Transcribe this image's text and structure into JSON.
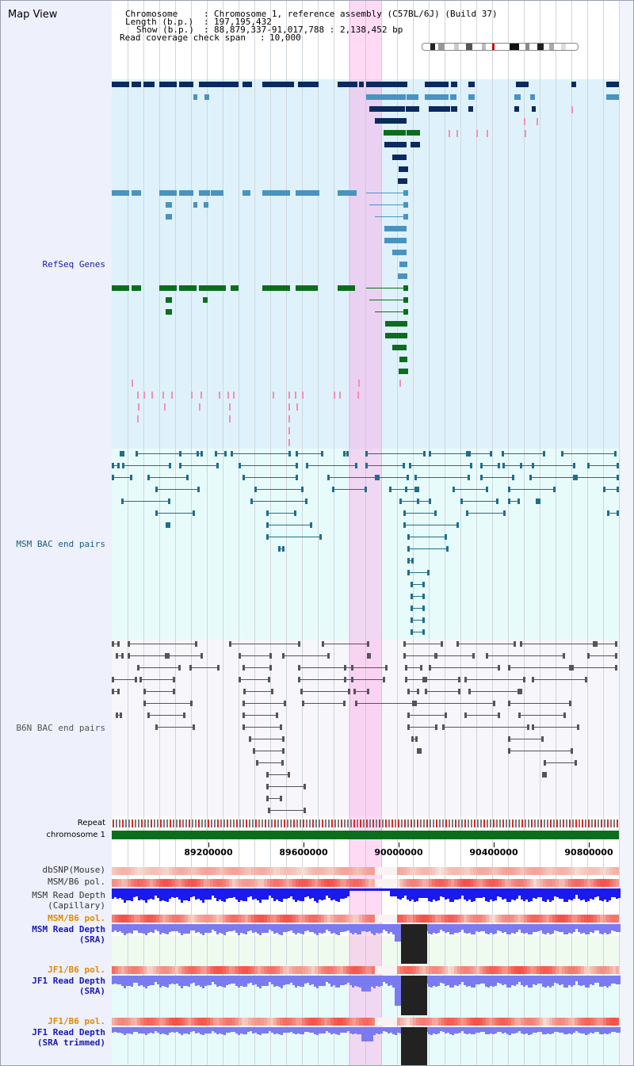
{
  "view_title": "Map View",
  "info": {
    "chromosome_label": "Chromosome",
    "chromosome_value": "Chromosome 1, reference assembly (C57BL/6J) (Build 37)",
    "length_label": "Length (b.p.)",
    "length_value": "197,195,432",
    "show_label": "Show (b.p.)",
    "show_value": "88,879,337-91,017,788 : 2,138,452 bp",
    "span_label": "Read coverage check span",
    "span_value": "10,000"
  },
  "tracks": {
    "refseq": "RefSeq Genes",
    "msm_bac": "MSM BAC end pairs",
    "b6n_bac": "B6N BAC end pairs",
    "repeat": "Repeat",
    "chromosome": "chromosome 1",
    "dbsnp": "dbSNP(Mouse)",
    "msm_b6_pol": "MSM/B6 pol.",
    "msm_depth_cap_1": "MSM Read Depth",
    "msm_depth_cap_2": "(Capillary)",
    "msm_b6_pol_2": "MSM/B6 pol.",
    "msm_depth_sra_1": "MSM Read Depth",
    "msm_depth_sra_2": "(SRA)",
    "jf1_b6_pol": "JF1/B6 pol.",
    "jf1_depth_sra_1": "JF1 Read Depth",
    "jf1_depth_sra_2": "(SRA)",
    "jf1_b6_pol_2": "JF1/B6 pol.",
    "jf1_depth_trim_1": "JF1 Read Depth",
    "jf1_depth_trim_2": "(SRA trimmed)"
  },
  "axis": {
    "ticks": [
      "89200000",
      "89600000",
      "90000000",
      "90400000",
      "90800000"
    ]
  },
  "colors": {
    "gene_navy": "#0b2a5e",
    "gene_steel": "#4a93bf",
    "gene_green": "#0b6e1c",
    "mrna_pink": "#f38fb7",
    "bac_msm": "#1f6e8c",
    "bac_b6n": "#555555",
    "highlight": "#ffc6ee",
    "depth_capillary": "#1a1aee",
    "depth_sra": "#7b7bf0",
    "gap_block": "#222222",
    "chrom_bar": "#0b6e1c"
  }
}
